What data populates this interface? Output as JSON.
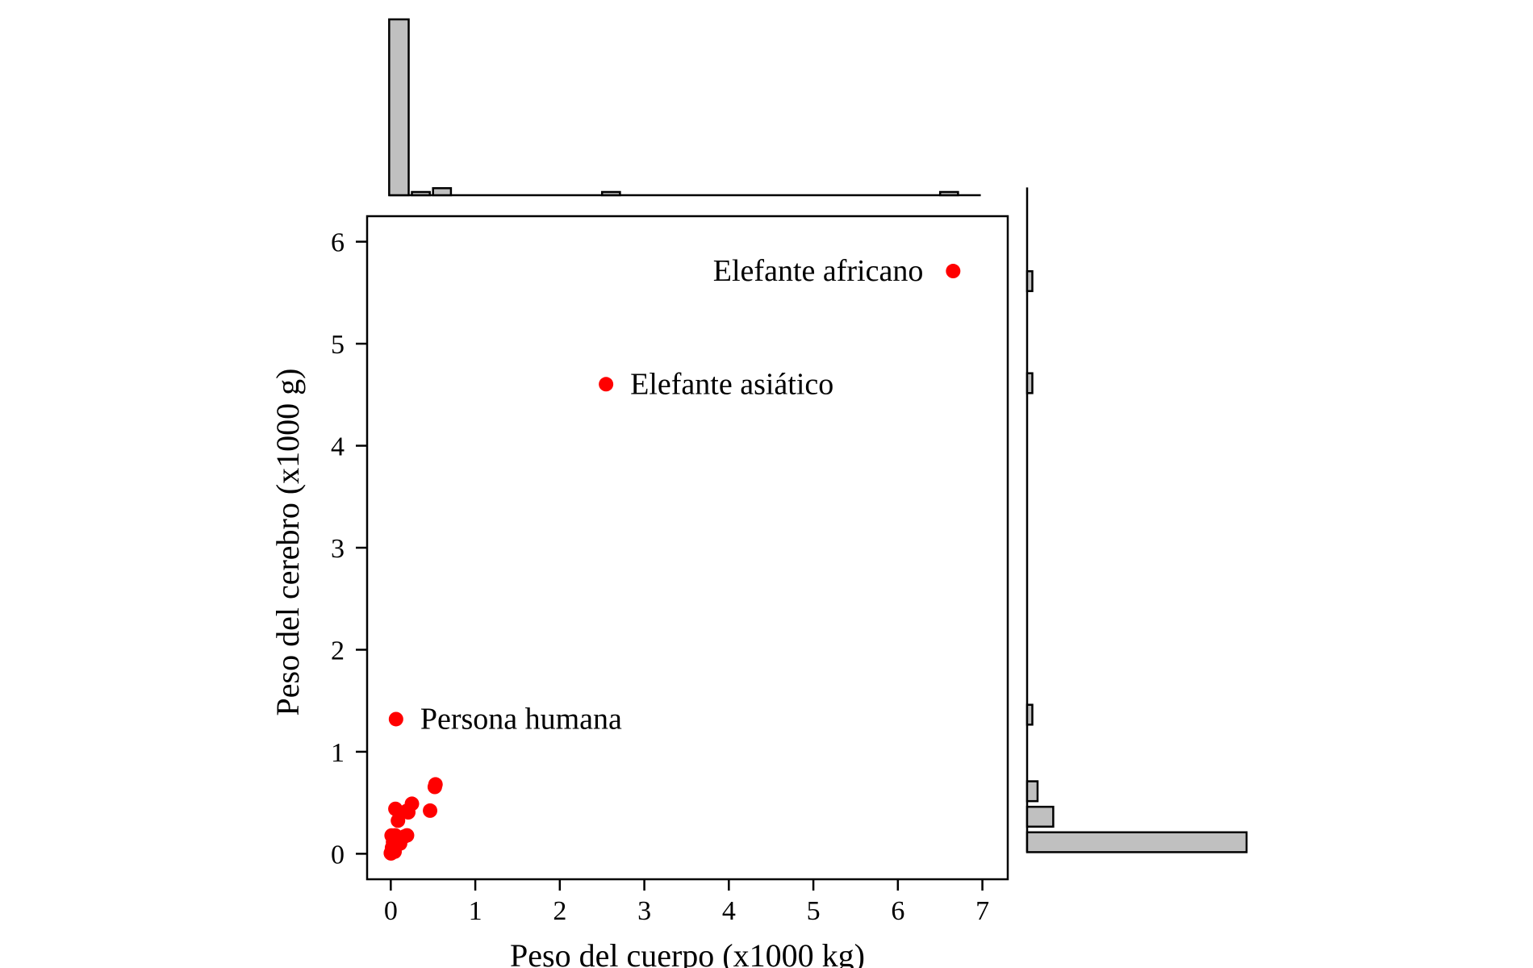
{
  "chart_data": {
    "type": "scatter",
    "xlabel": "Peso del cuerpo (x1000 kg)",
    "ylabel": "Peso del cerebro (x1000 g)",
    "xlim": [
      -0.28,
      7.3
    ],
    "ylim": [
      -0.25,
      6.25
    ],
    "xticks": [
      0,
      1,
      2,
      3,
      4,
      5,
      6,
      7
    ],
    "yticks": [
      0,
      1,
      2,
      3,
      4,
      5,
      6
    ],
    "grid": false,
    "point_color": "#ff0000",
    "hist_fill": "#c0c0c0",
    "points": [
      {
        "x": 6.654,
        "y": 5.712,
        "label": "Elefante africano"
      },
      {
        "x": 2.547,
        "y": 4.603,
        "label": "Elefante asiático"
      },
      {
        "x": 0.062,
        "y": 1.32,
        "label": "Persona humana"
      },
      {
        "x": 0.521,
        "y": 0.655,
        "label": ""
      },
      {
        "x": 0.529,
        "y": 0.68,
        "label": ""
      },
      {
        "x": 0.465,
        "y": 0.423,
        "label": ""
      },
      {
        "x": 0.25,
        "y": 0.49,
        "label": ""
      },
      {
        "x": 0.207,
        "y": 0.406,
        "label": ""
      },
      {
        "x": 0.187,
        "y": 0.419,
        "label": ""
      },
      {
        "x": 0.055,
        "y": 0.44,
        "label": ""
      },
      {
        "x": 0.085,
        "y": 0.325,
        "label": ""
      },
      {
        "x": 0.192,
        "y": 0.18,
        "label": ""
      },
      {
        "x": 0.16,
        "y": 0.169,
        "label": ""
      },
      {
        "x": 0.1,
        "y": 0.157,
        "label": ""
      },
      {
        "x": 0.036,
        "y": 0.119,
        "label": ""
      },
      {
        "x": 0.027,
        "y": 0.115,
        "label": ""
      },
      {
        "x": 0.01,
        "y": 0.179,
        "label": ""
      },
      {
        "x": 0.052,
        "y": 0.18,
        "label": ""
      },
      {
        "x": 0.11,
        "y": 0.1,
        "label": ""
      },
      {
        "x": 0.06,
        "y": 0.081,
        "label": ""
      },
      {
        "x": 0.035,
        "y": 0.056,
        "label": ""
      },
      {
        "x": 0.015,
        "y": 0.06,
        "label": ""
      },
      {
        "x": 0.01,
        "y": 0.025,
        "label": ""
      },
      {
        "x": 0.004,
        "y": 0.012,
        "label": ""
      },
      {
        "x": 0.001,
        "y": 0.006,
        "label": ""
      },
      {
        "x": 0.003,
        "y": 0.004,
        "label": ""
      },
      {
        "x": 0.02,
        "y": 0.04,
        "label": ""
      },
      {
        "x": 0.045,
        "y": 0.02,
        "label": ""
      }
    ],
    "x_histogram": {
      "bins": [
        {
          "from": 0.0,
          "to": 0.25,
          "count": 25
        },
        {
          "from": 0.25,
          "to": 0.5,
          "count": 0.3
        },
        {
          "from": 0.5,
          "to": 0.75,
          "count": 1
        },
        {
          "from": 2.5,
          "to": 2.75,
          "count": 0.3
        },
        {
          "from": 6.5,
          "to": 6.75,
          "count": 0.3
        }
      ],
      "range": [
        0,
        7
      ]
    },
    "y_histogram": {
      "bins": [
        {
          "from": 0.0,
          "to": 0.25,
          "count": 21
        },
        {
          "from": 0.25,
          "to": 0.5,
          "count": 2.5
        },
        {
          "from": 0.5,
          "to": 0.75,
          "count": 1
        },
        {
          "from": 1.25,
          "to": 1.5,
          "count": 0.5
        },
        {
          "from": 4.5,
          "to": 4.75,
          "count": 0.5
        },
        {
          "from": 5.5,
          "to": 5.75,
          "count": 0.5
        }
      ],
      "range": [
        0,
        6.5
      ]
    }
  }
}
